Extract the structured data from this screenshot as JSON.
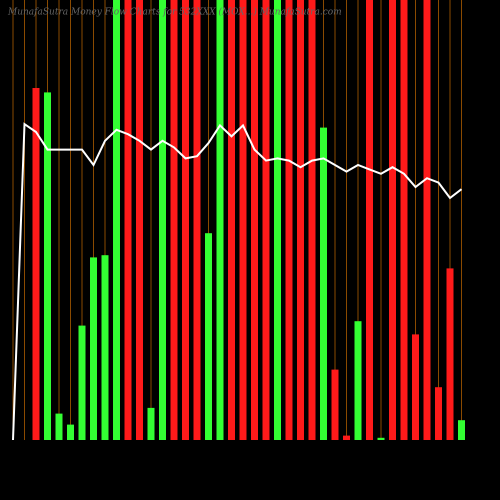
{
  "chart_data": {
    "type": "bar",
    "title": "MunafaSutra  Money Flow  Charts for 532XXX  (MOX...)  MunafaSutra.com",
    "ylim": [
      0,
      100
    ],
    "values": [
      0,
      0,
      80,
      79,
      6,
      3.5,
      26,
      41.5,
      42,
      100,
      100,
      100,
      7.3,
      100,
      100,
      100,
      100,
      47,
      100,
      100,
      100,
      100,
      100,
      100,
      100,
      100,
      100,
      71,
      16,
      1,
      27,
      100,
      0.5,
      100,
      100,
      24,
      100,
      12,
      39,
      4.5
    ],
    "colors": [
      "#33ff33",
      "#ff1a1a",
      "#ff1a1a",
      "#33ff33",
      "#33ff33",
      "#33ff33",
      "#33ff33",
      "#33ff33",
      "#33ff33",
      "#33ff33",
      "#ff1a1a",
      "#ff1a1a",
      "#33ff33",
      "#33ff33",
      "#ff1a1a",
      "#ff1a1a",
      "#ff1a1a",
      "#33ff33",
      "#33ff33",
      "#ff1a1a",
      "#ff1a1a",
      "#ff1a1a",
      "#ff1a1a",
      "#33ff33",
      "#ff1a1a",
      "#ff1a1a",
      "#ff1a1a",
      "#33ff33",
      "#ff1a1a",
      "#ff1a1a",
      "#33ff33",
      "#ff1a1a",
      "#33ff33",
      "#ff1a1a",
      "#ff1a1a",
      "#ff1a1a",
      "#ff1a1a",
      "#ff1a1a",
      "#ff1a1a",
      "#33ff33"
    ],
    "guide_color": "#8a4a00",
    "line": {
      "color": "#ffffff",
      "values": [
        0,
        71.8,
        70,
        66,
        66,
        66,
        66,
        62.5,
        68,
        70.5,
        69.5,
        68,
        66,
        68,
        66.5,
        64,
        64.5,
        67.5,
        71.5,
        69,
        71.5,
        66,
        63.5,
        64,
        63.5,
        62,
        63.5,
        64,
        62.5,
        61,
        62.5,
        61.5,
        60.5,
        62,
        60.5,
        57.5,
        59.5,
        58.5,
        55,
        57
      ]
    }
  }
}
